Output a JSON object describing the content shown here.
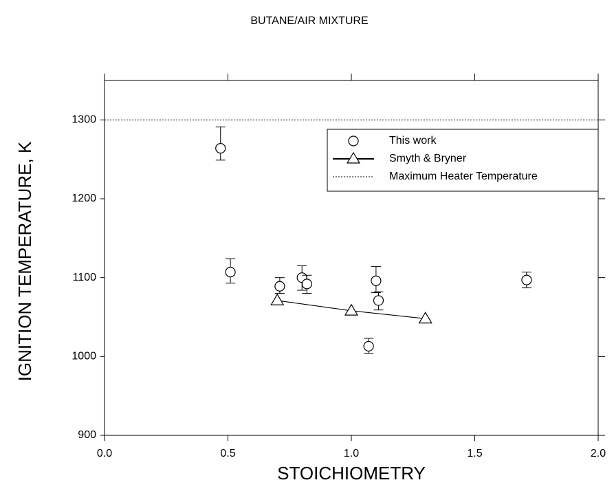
{
  "chart_data": {
    "type": "scatter",
    "title": "BUTANE/AIR MIXTURE",
    "xlabel": "STOICHIOMETRY",
    "ylabel": "IGNITION TEMPERATURE, K",
    "xlim": [
      0,
      2.0
    ],
    "ylim": [
      900,
      1350
    ],
    "xticks": [
      {
        "value": 0,
        "label": "0.0"
      },
      0.5,
      {
        "value": 1,
        "label": "1.0"
      },
      1.5,
      {
        "value": 2,
        "label": "2.0"
      }
    ],
    "yticks": [
      900,
      1000,
      1100,
      1200,
      1300
    ],
    "legend": "upper right",
    "series": [
      {
        "name": "This work",
        "color": "#000000",
        "marker": "circle",
        "x": [
          0.47,
          0.51,
          0.71,
          0.8,
          0.82,
          1.1,
          1.11,
          1.07,
          1.71
        ],
        "values": [
          1264,
          1107,
          1089,
          1100,
          1092,
          1096,
          1071,
          1013,
          1097
        ],
        "error_low": [
          15,
          14,
          9,
          16,
          12,
          15,
          12,
          9,
          10
        ],
        "error_high": [
          27,
          17,
          11,
          15,
          11,
          18,
          11,
          10,
          10
        ]
      },
      {
        "name": "Smyth & Bryner",
        "color": "#000000",
        "marker": "triangle",
        "line": true,
        "x": [
          0.7,
          1.0,
          1.3
        ],
        "values": [
          1071,
          1058,
          1048
        ]
      }
    ],
    "reference_lines": [
      {
        "name": "Maximum Heater Temperature",
        "value": 1300,
        "style": "dotted"
      }
    ]
  }
}
